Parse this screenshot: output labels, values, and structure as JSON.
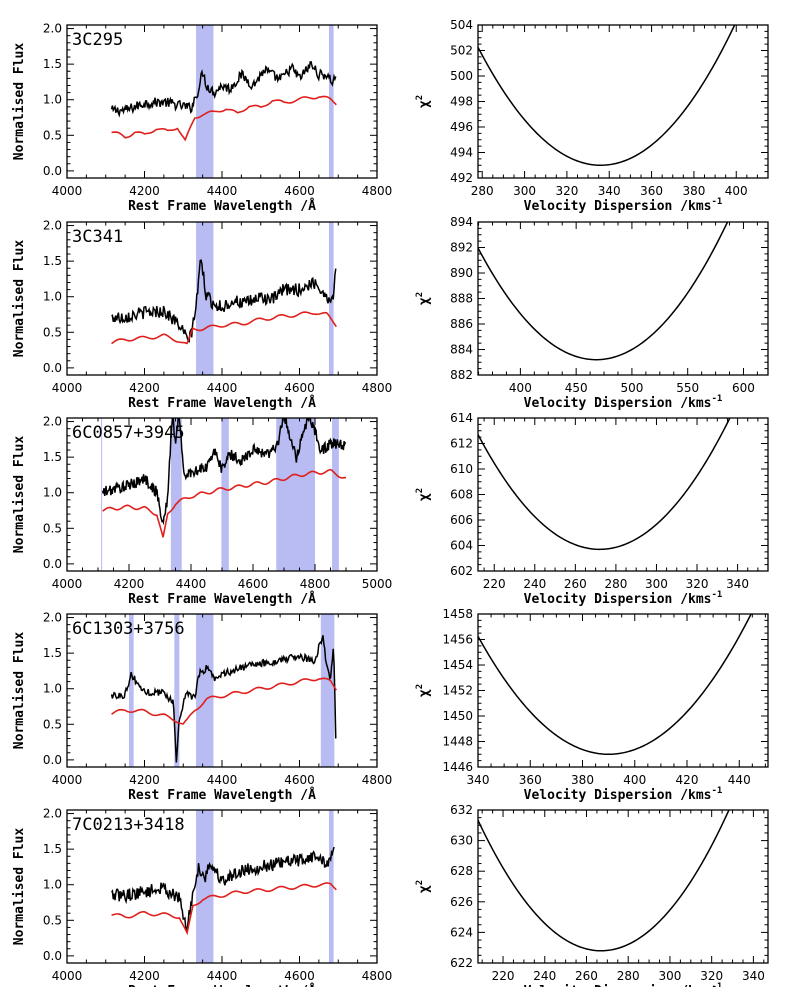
{
  "figure": {
    "left_column_xlabel": "Rest Frame Wavelength /Å",
    "left_column_ylabel": "Normalised Flux",
    "right_column_xlabel": "Velocity Dispersion /kms",
    "right_column_xlabel_superscript": "-1",
    "right_column_ylabel": "χ",
    "right_column_ylabel_superscript": "2"
  },
  "colors": {
    "observed_spectrum": "#000000",
    "template_fit": "#e0201c",
    "masked_region": "#b8bcf2",
    "chi2_curve": "#000000"
  },
  "chart_data": [
    {
      "id": "spec-3c295",
      "type": "line",
      "object": "3C295",
      "xlabel": "Rest Frame Wavelength /Å",
      "ylabel": "Normalised Flux",
      "xlim": [
        4000,
        4800
      ],
      "ylim": [
        -0.1,
        2.05
      ],
      "xticks": [
        4000,
        4200,
        4400,
        4600,
        4800
      ],
      "yticks": [
        0.0,
        0.5,
        1.0,
        1.5,
        2.0
      ],
      "masked_regions": [
        [
          4333,
          4378
        ],
        [
          4676,
          4688
        ]
      ],
      "series": [
        {
          "role": "observed",
          "color": "#000000",
          "x": [
            4115,
            4150,
            4200,
            4250,
            4290,
            4310,
            4320,
            4340,
            4350,
            4360,
            4380,
            4400,
            4420,
            4450,
            4480,
            4510,
            4550,
            4580,
            4600,
            4630,
            4650,
            4670,
            4685,
            4695
          ],
          "y": [
            0.85,
            0.85,
            0.95,
            0.97,
            0.92,
            0.9,
            0.88,
            1.15,
            1.4,
            1.2,
            1.1,
            1.2,
            1.15,
            1.35,
            1.2,
            1.42,
            1.28,
            1.45,
            1.3,
            1.5,
            1.35,
            1.35,
            1.25,
            1.35
          ],
          "noise": 0.07
        },
        {
          "role": "model",
          "color": "#e0201c",
          "x": [
            4115,
            4130,
            4150,
            4175,
            4200,
            4230,
            4260,
            4285,
            4305,
            4315,
            4330,
            4350,
            4380,
            4410,
            4440,
            4470,
            4500,
            4530,
            4560,
            4590,
            4620,
            4650,
            4680,
            4695
          ],
          "y": [
            0.55,
            0.52,
            0.47,
            0.55,
            0.5,
            0.6,
            0.55,
            0.62,
            0.42,
            0.55,
            0.75,
            0.8,
            0.82,
            0.88,
            0.8,
            0.92,
            0.88,
            1.0,
            0.95,
            1.0,
            1.02,
            1.05,
            1.0,
            0.95
          ],
          "noise": 0
        }
      ]
    },
    {
      "id": "chi2-3c295",
      "type": "line",
      "object": "3C295",
      "xlabel": "Velocity Dispersion /kms-1",
      "ylabel": "χ2",
      "xlim": [
        278,
        415
      ],
      "ylim": [
        492,
        504
      ],
      "xticks": [
        280,
        300,
        320,
        340,
        360,
        380,
        400
      ],
      "yticks": [
        492,
        494,
        496,
        498,
        500,
        502,
        504
      ],
      "curve": {
        "min_x": 336,
        "min_y": 493.0,
        "curvature": 0.00275
      }
    },
    {
      "id": "spec-3c341",
      "type": "line",
      "object": "3C341",
      "xlabel": "Rest Frame Wavelength /Å",
      "ylabel": "Normalised Flux",
      "xlim": [
        4000,
        4800
      ],
      "ylim": [
        -0.1,
        2.05
      ],
      "xticks": [
        4000,
        4200,
        4400,
        4600,
        4800
      ],
      "yticks": [
        0.0,
        0.5,
        1.0,
        1.5,
        2.0
      ],
      "masked_regions": [
        [
          4333,
          4378
        ],
        [
          4676,
          4688
        ]
      ],
      "series": [
        {
          "role": "observed",
          "color": "#000000",
          "x": [
            4115,
            4150,
            4200,
            4250,
            4290,
            4310,
            4320,
            4335,
            4345,
            4360,
            4380,
            4400,
            4430,
            4460,
            4500,
            4530,
            4560,
            4600,
            4640,
            4670,
            4685,
            4695
          ],
          "y": [
            0.7,
            0.72,
            0.78,
            0.8,
            0.6,
            0.4,
            0.45,
            0.95,
            1.55,
            1.0,
            0.9,
            0.85,
            0.95,
            0.9,
            1.0,
            0.95,
            1.1,
            1.1,
            1.2,
            1.0,
            0.95,
            1.4
          ],
          "noise": 0.09
        },
        {
          "role": "model",
          "color": "#e0201c",
          "x": [
            4115,
            4150,
            4200,
            4250,
            4290,
            4310,
            4325,
            4350,
            4400,
            4450,
            4500,
            4550,
            4600,
            4640,
            4670,
            4695
          ],
          "y": [
            0.35,
            0.4,
            0.42,
            0.45,
            0.38,
            0.32,
            0.55,
            0.55,
            0.6,
            0.62,
            0.68,
            0.72,
            0.75,
            0.78,
            0.75,
            0.6
          ],
          "noise": 0
        }
      ]
    },
    {
      "id": "chi2-3c341",
      "type": "line",
      "object": "3C341",
      "xlabel": "Velocity Dispersion /kms-1",
      "ylabel": "χ2",
      "xlim": [
        362,
        622
      ],
      "ylim": [
        882,
        894
      ],
      "xticks": [
        400,
        450,
        500,
        550,
        600
      ],
      "yticks": [
        882,
        884,
        886,
        888,
        890,
        892,
        894
      ],
      "curve": {
        "min_x": 468,
        "min_y": 883.2,
        "curvature": 0.00078
      }
    },
    {
      "id": "spec-6c0857",
      "type": "line",
      "object": "6C0857+3945",
      "xlabel": "Rest Frame Wavelength /Å",
      "ylabel": "Normalised Flux",
      "xlim": [
        4000,
        5000
      ],
      "ylim": [
        -0.1,
        2.05
      ],
      "xticks": [
        4000,
        4200,
        4400,
        4600,
        4800,
        5000
      ],
      "yticks": [
        0.0,
        0.5,
        1.0,
        1.5,
        2.0
      ],
      "masked_regions": [
        [
          4110,
          4113
        ],
        [
          4335,
          4370
        ],
        [
          4498,
          4522
        ],
        [
          4675,
          4800
        ],
        [
          4855,
          4877
        ]
      ],
      "series": [
        {
          "role": "observed",
          "color": "#000000",
          "x": [
            4115,
            4150,
            4200,
            4250,
            4290,
            4310,
            4325,
            4340,
            4350,
            4360,
            4380,
            4400,
            4450,
            4480,
            4500,
            4520,
            4560,
            4600,
            4650,
            4680,
            4700,
            4740,
            4780,
            4820,
            4860,
            4900
          ],
          "y": [
            1.0,
            1.05,
            1.1,
            1.2,
            1.0,
            0.55,
            0.95,
            2.1,
            1.7,
            2.1,
            1.2,
            1.3,
            1.35,
            1.6,
            1.3,
            1.55,
            1.45,
            1.6,
            1.55,
            1.7,
            2.1,
            1.5,
            2.1,
            1.6,
            1.7,
            1.65
          ],
          "noise": 0.08
        },
        {
          "role": "model",
          "color": "#e0201c",
          "x": [
            4115,
            4150,
            4200,
            4250,
            4290,
            4310,
            4325,
            4350,
            4400,
            4450,
            4500,
            4550,
            4600,
            4650,
            4700,
            4750,
            4800,
            4850,
            4900
          ],
          "y": [
            0.75,
            0.78,
            0.8,
            0.78,
            0.7,
            0.35,
            0.7,
            0.85,
            0.95,
            1.0,
            1.05,
            1.08,
            1.12,
            1.15,
            1.2,
            1.25,
            1.28,
            1.3,
            1.2
          ],
          "noise": 0
        }
      ]
    },
    {
      "id": "chi2-6c0857",
      "type": "line",
      "object": "6C0857+3945",
      "xlabel": "Velocity Dispersion /kms-1",
      "ylabel": "χ2",
      "xlim": [
        212,
        355
      ],
      "ylim": [
        602,
        614
      ],
      "xticks": [
        220,
        240,
        260,
        280,
        300,
        320,
        340
      ],
      "yticks": [
        602,
        604,
        606,
        608,
        610,
        612,
        614
      ],
      "curve": {
        "min_x": 272,
        "min_y": 603.7,
        "curvature": 0.0025
      }
    },
    {
      "id": "spec-6c1303",
      "type": "line",
      "object": "6C1303+3756",
      "xlabel": "Rest Frame Wavelength /Å",
      "ylabel": "Normalised Flux",
      "xlim": [
        4000,
        4800
      ],
      "ylim": [
        -0.1,
        2.05
      ],
      "xticks": [
        4000,
        4200,
        4400,
        4600,
        4800
      ],
      "yticks": [
        0.0,
        0.5,
        1.0,
        1.5,
        2.0
      ],
      "masked_regions": [
        [
          4160,
          4172
        ],
        [
          4277,
          4290
        ],
        [
          4333,
          4378
        ],
        [
          4655,
          4690
        ]
      ],
      "series": [
        {
          "role": "observed",
          "color": "#000000",
          "x": [
            4115,
            4150,
            4165,
            4200,
            4250,
            4275,
            4282,
            4290,
            4300,
            4310,
            4330,
            4340,
            4360,
            4380,
            4400,
            4450,
            4500,
            4550,
            4600,
            4640,
            4660,
            4670,
            4680,
            4688,
            4695
          ],
          "y": [
            0.9,
            0.92,
            1.2,
            0.95,
            0.95,
            0.8,
            -0.05,
            0.6,
            0.8,
            0.95,
            0.85,
            1.2,
            1.3,
            1.15,
            1.2,
            1.3,
            1.35,
            1.4,
            1.45,
            1.4,
            1.75,
            1.3,
            1.15,
            1.65,
            -0.05
          ],
          "noise": 0.05
        },
        {
          "role": "model",
          "color": "#e0201c",
          "x": [
            4115,
            4150,
            4200,
            4250,
            4285,
            4300,
            4310,
            4330,
            4360,
            4400,
            4450,
            4500,
            4550,
            4600,
            4650,
            4680,
            4695
          ],
          "y": [
            0.65,
            0.7,
            0.68,
            0.62,
            0.55,
            0.5,
            0.55,
            0.7,
            0.85,
            0.9,
            0.95,
            1.0,
            1.05,
            1.1,
            1.15,
            1.1,
            1.0
          ],
          "noise": 0
        }
      ]
    },
    {
      "id": "chi2-6c1303",
      "type": "line",
      "object": "6C1303+3756",
      "xlabel": "Velocity Dispersion /kms-1",
      "ylabel": "χ2",
      "xlim": [
        340,
        451
      ],
      "ylim": [
        1446,
        1458
      ],
      "xticks": [
        340,
        360,
        380,
        400,
        420,
        440
      ],
      "yticks": [
        1446,
        1448,
        1450,
        1452,
        1454,
        1456,
        1458
      ],
      "curve": {
        "min_x": 390,
        "min_y": 1447.0,
        "curvature": 0.0037
      }
    },
    {
      "id": "spec-7c0213",
      "type": "line",
      "object": "7C0213+3418",
      "xlabel": "Rest Frame Wavelength /Å",
      "ylabel": "Normalised Flux",
      "xlim": [
        4000,
        4800
      ],
      "ylim": [
        -0.1,
        2.05
      ],
      "xticks": [
        4000,
        4200,
        4400,
        4600,
        4800
      ],
      "yticks": [
        0.0,
        0.5,
        1.0,
        1.5,
        2.0
      ],
      "masked_regions": [
        [
          4333,
          4378
        ],
        [
          4676,
          4688
        ]
      ],
      "series": [
        {
          "role": "observed",
          "color": "#000000",
          "x": [
            4115,
            4150,
            4200,
            4250,
            4290,
            4310,
            4320,
            4340,
            4355,
            4370,
            4400,
            4450,
            4500,
            4550,
            4600,
            4640,
            4670,
            4690
          ],
          "y": [
            0.85,
            0.85,
            0.9,
            0.95,
            0.8,
            0.35,
            0.75,
            1.25,
            1.1,
            1.3,
            1.05,
            1.2,
            1.25,
            1.3,
            1.35,
            1.4,
            1.3,
            1.45
          ],
          "noise": 0.09
        },
        {
          "role": "model",
          "color": "#e0201c",
          "x": [
            4115,
            4150,
            4200,
            4250,
            4290,
            4310,
            4325,
            4350,
            4400,
            4450,
            4500,
            4550,
            4600,
            4650,
            4680,
            4695
          ],
          "y": [
            0.58,
            0.55,
            0.6,
            0.58,
            0.55,
            0.3,
            0.7,
            0.8,
            0.85,
            0.9,
            0.92,
            0.95,
            0.97,
            1.0,
            1.0,
            0.95
          ],
          "noise": 0
        }
      ]
    },
    {
      "id": "chi2-7c0213",
      "type": "line",
      "object": "7C0213+3418",
      "xlabel": "Velocity Dispersion /kms-1",
      "ylabel": "χ2",
      "xlim": [
        208,
        347
      ],
      "ylim": [
        622,
        632
      ],
      "xticks": [
        220,
        240,
        260,
        280,
        300,
        320,
        340
      ],
      "yticks": [
        622,
        624,
        626,
        628,
        630,
        632
      ],
      "curve": {
        "min_x": 267,
        "min_y": 622.8,
        "curvature": 0.00245
      }
    }
  ]
}
